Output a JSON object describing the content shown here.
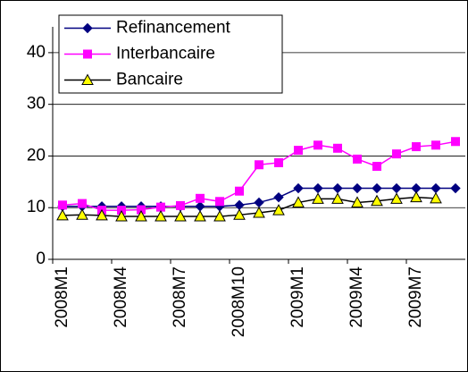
{
  "chart_data": {
    "type": "line",
    "categories": [
      "2008M1",
      null,
      null,
      "2008M4",
      null,
      null,
      "2008M7",
      null,
      null,
      "2008M10",
      null,
      null,
      "2009M1",
      null,
      null,
      "2009M4",
      null,
      null,
      "2009M7",
      null,
      null
    ],
    "series": [
      {
        "name": "Refinancement",
        "color": "#000080",
        "marker": "diamond",
        "marker_color": "#000080",
        "values": [
          10.25,
          10.25,
          10.25,
          10.25,
          10.25,
          10.25,
          10.25,
          10.25,
          10.25,
          10.5,
          11,
          12,
          13.75,
          13.75,
          13.75,
          13.75,
          13.75,
          13.75,
          13.75,
          13.75,
          13.75
        ]
      },
      {
        "name": "Interbancaire",
        "color": "#ff00ff",
        "marker": "square",
        "marker_color": "#ff00ff",
        "values": [
          10.5,
          10.8,
          9.5,
          9.5,
          9.6,
          10.1,
          10.4,
          11.8,
          11.2,
          13.2,
          18.3,
          18.7,
          21.1,
          22.1,
          21.5,
          19.4,
          18,
          20.4,
          21.8,
          22.1,
          22.8
        ]
      },
      {
        "name": "Bancaire",
        "color": "#000000",
        "marker": "triangle",
        "marker_color": "#ffff00",
        "values": [
          8.5,
          8.6,
          8.5,
          8.3,
          8.3,
          8.3,
          8.3,
          8.3,
          8.3,
          8.6,
          9,
          9.5,
          11,
          11.7,
          11.7,
          11,
          11.3,
          11.7,
          12,
          11.8,
          null
        ]
      }
    ],
    "ylim": [
      0,
      45
    ],
    "yticks": [
      0,
      10,
      20,
      30,
      40
    ],
    "grid": true,
    "legend": "top-left"
  }
}
